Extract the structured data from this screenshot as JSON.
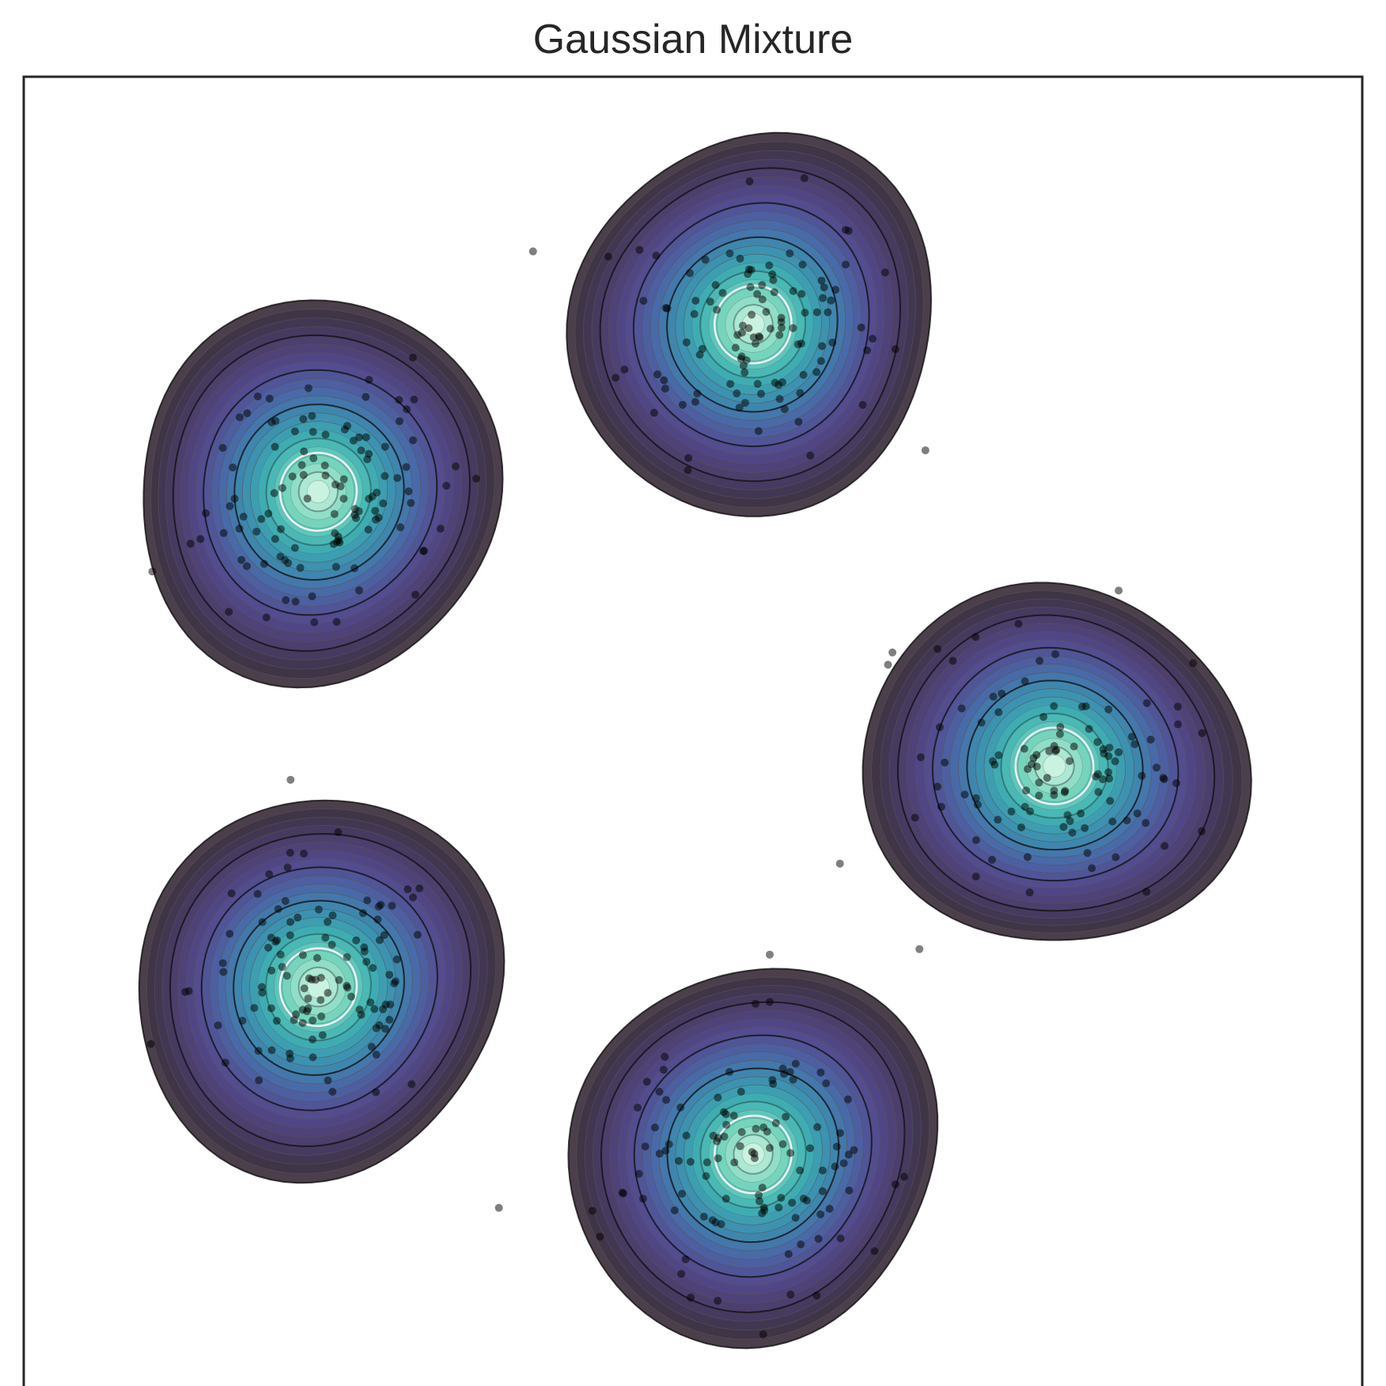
{
  "chart_data": {
    "type": "contour",
    "title": "Gaussian Mixture",
    "xlabel": "",
    "ylabel": "",
    "xlim": [
      -1.0,
      1.0
    ],
    "ylim": [
      -1.0,
      1.0
    ],
    "grid": false,
    "axis_ticks": false,
    "colormap": [
      "#3b2f3b",
      "#4b3e6a",
      "#544a8e",
      "#4a68a8",
      "#3c8fb0",
      "#3fb3b3",
      "#7fd8bf",
      "#cdf3e2"
    ],
    "components": [
      {
        "center": [
          -0.56,
          0.38
        ],
        "spread": 0.105
      },
      {
        "center": [
          0.09,
          0.63
        ],
        "spread": 0.105
      },
      {
        "center": [
          0.54,
          -0.03
        ],
        "spread": 0.105
      },
      {
        "center": [
          -0.56,
          -0.36
        ],
        "spread": 0.105
      },
      {
        "center": [
          0.09,
          -0.61
        ],
        "spread": 0.105
      }
    ],
    "points_per_component": 110,
    "point_color": "#000000"
  }
}
